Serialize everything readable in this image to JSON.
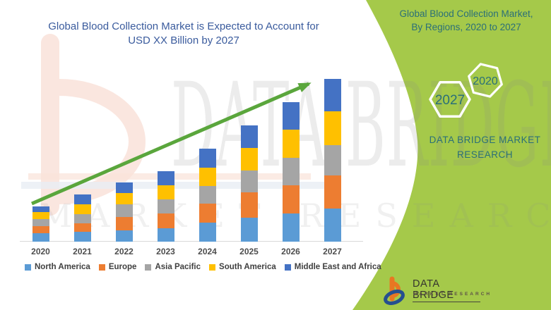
{
  "header": {
    "title_line1": "Global Blood Collection Market is Expected to Account for",
    "title_line2": "USD XX Billion by 2027",
    "title_color": "#3a5b9d"
  },
  "chart_data": {
    "type": "bar",
    "stacked": true,
    "title": "Global Blood Collection Market is Expected to Account for USD XX Billion by 2027",
    "xlabel": "",
    "ylabel": "",
    "value_note": "values unlabeled in source (USD XX Billion); relative units measured from bar heights",
    "categories": [
      "2020",
      "2021",
      "2022",
      "2023",
      "2024",
      "2025",
      "2026",
      "2027"
    ],
    "series": [
      {
        "name": "North America",
        "color": "#5B9BD5",
        "values": [
          12,
          14,
          16,
          19,
          27,
          34,
          40,
          47
        ]
      },
      {
        "name": "Europe",
        "color": "#ED7D31",
        "values": [
          10,
          12,
          19,
          21,
          27,
          36,
          40,
          47
        ]
      },
      {
        "name": "Asia Pacific",
        "color": "#A5A5A5",
        "values": [
          10,
          13,
          18,
          20,
          25,
          31,
          39,
          43
        ]
      },
      {
        "name": "South America",
        "color": "#FFC000",
        "values": [
          10,
          14,
          16,
          20,
          26,
          32,
          40,
          48
        ]
      },
      {
        "name": "Middle East and Africa",
        "color": "#4472C4",
        "values": [
          8,
          14,
          15,
          20,
          27,
          32,
          39,
          46
        ]
      }
    ],
    "totals": [
      50,
      67,
      84,
      100,
      132,
      165,
      198,
      231
    ],
    "legend_position": "bottom",
    "gridlines": false,
    "axis_line_color": "#d9d9d9",
    "trend_arrow": {
      "color": "#5aa63c",
      "from_category": "2020",
      "to_category": "2027"
    }
  },
  "panel": {
    "bg_color": "#a5c94a",
    "text_color": "#2a6f78",
    "title_line1": "Global Blood Collection Market,",
    "title_line2": "By Regions, 2020 to 2027",
    "hex_year_small": "2020",
    "hex_year_large": "2027",
    "brand_line1": "DATA BRIDGE MARKET",
    "brand_line2": "RESEARCH"
  },
  "footer_logo": {
    "name": "DATA BRIDGE",
    "tagline": "MARKET RESEARCH",
    "mark_orange": "#E87722",
    "mark_blue": "#264f8f"
  },
  "watermark": {
    "line1": "DATA BRIDGE",
    "line2": "MARKET RESEARCH"
  }
}
